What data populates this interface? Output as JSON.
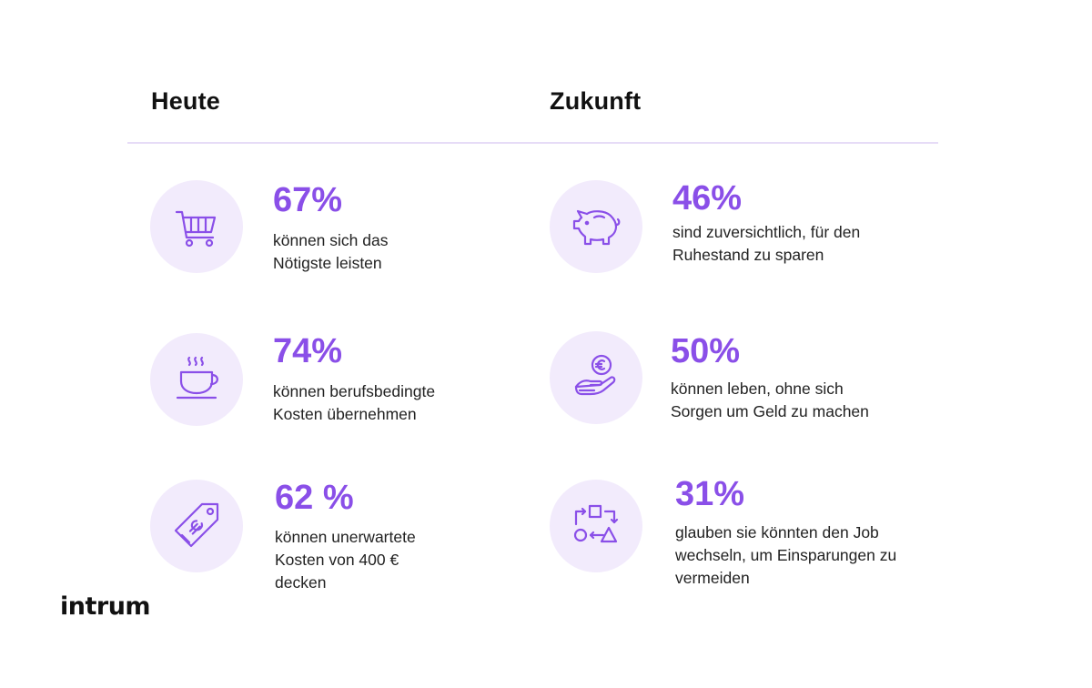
{
  "headings": {
    "left": "Heute",
    "right": "Zukunft"
  },
  "stats": [
    {
      "icon": "shopping-cart-icon",
      "percent": "67%",
      "lines": [
        "können sich das",
        "Nötigste leisten"
      ]
    },
    {
      "icon": "coffee-cup-icon",
      "percent": "74%",
      "lines": [
        "können berufsbedingte",
        "Kosten übernehmen"
      ]
    },
    {
      "icon": "euro-price-tag-icon",
      "percent": "62 %",
      "lines": [
        "können unerwartete",
        "Kosten von 400 €",
        "decken"
      ]
    },
    {
      "icon": "piggy-bank-icon",
      "percent": "46%",
      "lines": [
        "sind zuversichtlich, für den",
        "Ruhestand zu sparen"
      ]
    },
    {
      "icon": "hand-euro-coin-icon",
      "percent": "50%",
      "lines": [
        "können leben, ohne sich",
        "Sorgen um Geld zu machen"
      ]
    },
    {
      "icon": "shapes-exchange-icon",
      "percent": "31%",
      "lines": [
        "glauben sie könnten den Job",
        "wechseln, um Einsparungen zu",
        "vermeiden"
      ]
    }
  ],
  "logo": "intrum",
  "colors": {
    "accent": "#8a4fe8",
    "icon_circle": "#f2ebfc",
    "divider": "#e6dcf7",
    "text": "#222222"
  }
}
